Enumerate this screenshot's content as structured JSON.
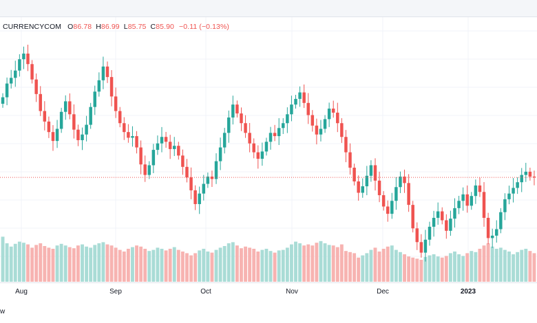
{
  "legend": {
    "symbol": "CURRENCYCOM",
    "o_label": "O",
    "o_value": "86.78",
    "h_label": "H",
    "h_value": "86.99",
    "l_label": "L",
    "l_value": "85.75",
    "c_label": "C",
    "c_value": "85.90",
    "change": "−0.11 (−0.13%)"
  },
  "x_axis": {
    "labels": [
      "Aug",
      "Sep",
      "Oct",
      "Nov",
      "Dec",
      "2023"
    ]
  },
  "bottom_note": "w",
  "colors": {
    "up": "#26a69a",
    "down": "#ef5350",
    "up_volume": "#a9dcd6",
    "down_volume": "#f7b3b1",
    "grid": "#f0f3fa",
    "last_price_line": "#ef5350"
  },
  "chart_data": {
    "type": "candlestick",
    "title": "",
    "xlabel": "",
    "ylabel": "",
    "last_close": 85.9,
    "x_tick_labels": [
      "Aug",
      "Sep",
      "Oct",
      "Nov",
      "Dec",
      "2023"
    ],
    "ylim": [
      73,
      104
    ],
    "closes": [
      95.8,
      97.5,
      98.2,
      99.1,
      100.5,
      101.2,
      99.9,
      98.0,
      96.2,
      94.1,
      92.8,
      91.5,
      90.4,
      91.9,
      94.0,
      95.3,
      93.7,
      91.8,
      90.5,
      91.2,
      92.4,
      94.6,
      96.5,
      97.9,
      99.6,
      98.3,
      95.9,
      94.1,
      92.6,
      91.5,
      90.8,
      91.0,
      89.6,
      87.5,
      86.2,
      87.4,
      89.3,
      90.1,
      90.9,
      90.3,
      89.4,
      89.8,
      88.6,
      87.2,
      85.9,
      84.3,
      82.6,
      83.9,
      85.1,
      86.0,
      85.7,
      87.9,
      89.6,
      91.4,
      93.3,
      94.9,
      93.8,
      92.6,
      91.4,
      90.1,
      89.0,
      88.2,
      89.1,
      90.3,
      91.4,
      91.0,
      92.0,
      92.6,
      93.7,
      94.9,
      95.6,
      96.4,
      95.1,
      93.6,
      92.3,
      91.2,
      91.9,
      93.1,
      94.4,
      93.9,
      92.6,
      90.9,
      89.0,
      87.1,
      85.4,
      84.0,
      84.8,
      86.1,
      87.4,
      85.5,
      83.7,
      82.3,
      81.4,
      83.0,
      84.7,
      86.0,
      85.2,
      82.5,
      79.6,
      77.9,
      76.6,
      78.2,
      79.8,
      80.9,
      81.7,
      80.6,
      79.3,
      80.8,
      82.1,
      83.0,
      83.8,
      82.4,
      83.6,
      84.9,
      84.1,
      80.9,
      78.4,
      78.7,
      79.5,
      81.6,
      83.2,
      83.9,
      84.6,
      85.3,
      86.2,
      86.6,
      86.0,
      85.9
    ],
    "volumes": [
      0.82,
      0.7,
      0.64,
      0.69,
      0.73,
      0.71,
      0.68,
      0.62,
      0.67,
      0.7,
      0.65,
      0.62,
      0.6,
      0.66,
      0.69,
      0.66,
      0.63,
      0.61,
      0.66,
      0.68,
      0.64,
      0.62,
      0.67,
      0.7,
      0.72,
      0.68,
      0.66,
      0.62,
      0.58,
      0.55,
      0.6,
      0.63,
      0.66,
      0.64,
      0.6,
      0.56,
      0.58,
      0.62,
      0.6,
      0.57,
      0.6,
      0.63,
      0.58,
      0.55,
      0.52,
      0.48,
      0.52,
      0.57,
      0.6,
      0.55,
      0.53,
      0.58,
      0.62,
      0.65,
      0.7,
      0.72,
      0.66,
      0.61,
      0.64,
      0.62,
      0.6,
      0.55,
      0.58,
      0.6,
      0.56,
      0.53,
      0.57,
      0.58,
      0.62,
      0.68,
      0.73,
      0.7,
      0.66,
      0.68,
      0.66,
      0.71,
      0.74,
      0.7,
      0.67,
      0.66,
      0.63,
      0.68,
      0.56,
      0.54,
      0.52,
      0.44,
      0.48,
      0.52,
      0.58,
      0.62,
      0.55,
      0.6,
      0.64,
      0.66,
      0.58,
      0.54,
      0.5,
      0.46,
      0.44,
      0.42,
      0.4,
      0.45,
      0.48,
      0.5,
      0.46,
      0.44,
      0.47,
      0.52,
      0.55,
      0.5,
      0.47,
      0.52,
      0.56,
      0.54,
      0.6,
      0.66,
      0.7,
      0.64,
      0.6,
      0.62,
      0.58,
      0.55,
      0.5,
      0.54,
      0.58,
      0.6,
      0.56,
      0.52
    ]
  }
}
